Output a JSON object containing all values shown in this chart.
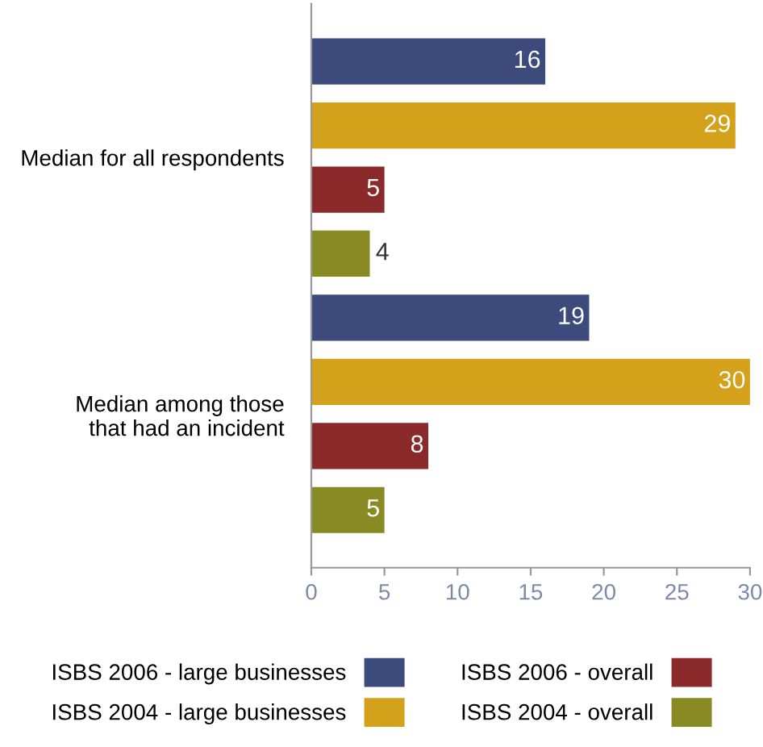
{
  "chart_data": {
    "type": "bar",
    "orientation": "horizontal",
    "categories": [
      "Median for all respondents",
      "Median among those\nthat had an incident"
    ],
    "series": [
      {
        "name": "ISBS 2006 - large businesses",
        "color": "#3d4a7c",
        "values": [
          16,
          19
        ]
      },
      {
        "name": "ISBS 2004 - large businesses",
        "color": "#d4a21a",
        "values": [
          29,
          30
        ]
      },
      {
        "name": "ISBS 2006 - overall",
        "color": "#8a2a2a",
        "values": [
          5,
          8
        ]
      },
      {
        "name": "ISBS 2004 - overall",
        "color": "#8a8a24",
        "values": [
          4,
          5
        ]
      }
    ],
    "xlim": [
      0,
      30
    ],
    "xticks": [
      0,
      5,
      10,
      15,
      20,
      25,
      30
    ],
    "data_labels": true,
    "grid": false,
    "legend": "bottom"
  }
}
